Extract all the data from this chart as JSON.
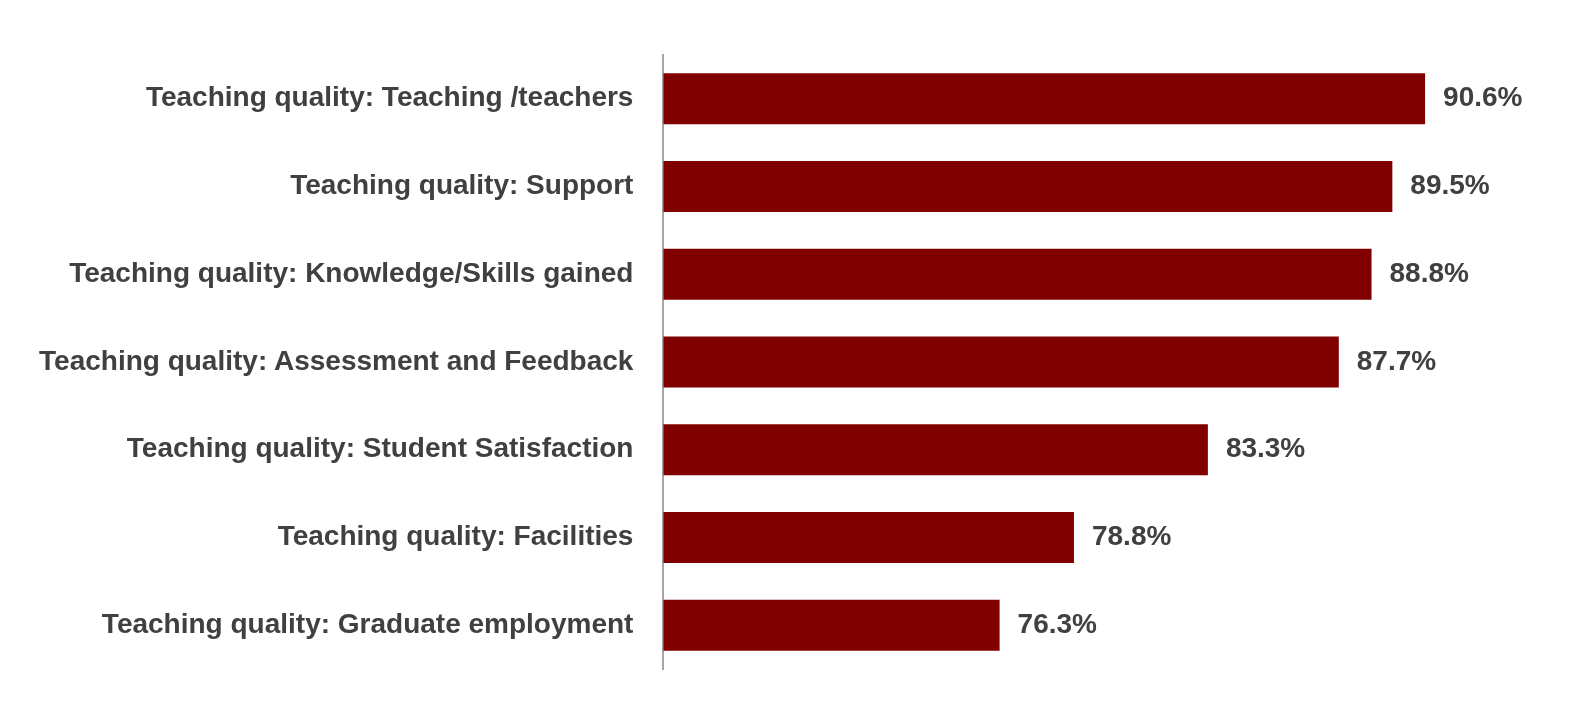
{
  "chart_data": {
    "type": "bar",
    "orientation": "horizontal",
    "categories": [
      "Teaching quality: Teaching /teachers",
      "Teaching quality: Support",
      "Teaching quality: Knowledge/Skills gained",
      "Teaching quality: Assessment and Feedback",
      "Teaching quality: Student Satisfaction",
      "Teaching quality: Facilities",
      "Teaching quality: Graduate employment"
    ],
    "values": [
      90.6,
      89.5,
      88.8,
      87.7,
      83.3,
      78.8,
      76.3
    ],
    "value_labels": [
      "90.6%",
      "89.5%",
      "88.8%",
      "87.7%",
      "83.3%",
      "78.8%",
      "76.3%"
    ],
    "color": "#800000",
    "tick_labels": "y",
    "grid": false,
    "legend": false
  }
}
